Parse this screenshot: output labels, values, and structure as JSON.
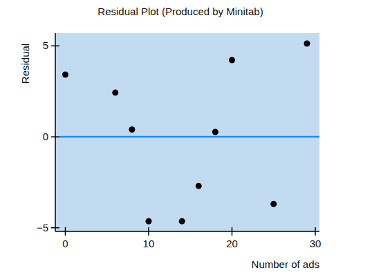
{
  "chart_data": {
    "type": "scatter",
    "title": "Residual Plot (Produced by Minitab)",
    "x_label": "Number of ads",
    "y_label": "Residual",
    "x": [
      0,
      6,
      8,
      10,
      14,
      16,
      18,
      20,
      25,
      29
    ],
    "values": [
      3.42,
      2.43,
      0.4,
      -4.64,
      -4.64,
      -2.7,
      0.27,
      4.22,
      -3.69,
      5.13
    ],
    "color": "#000000",
    "marker": "circle",
    "reference_line": 0,
    "xlim": [
      -1.2,
      30.5
    ],
    "xticks": [
      0,
      10,
      20,
      30
    ],
    "ylim": [
      -5.2,
      5.7
    ],
    "yticks": [
      -5,
      0,
      5
    ],
    "grid": false
  }
}
